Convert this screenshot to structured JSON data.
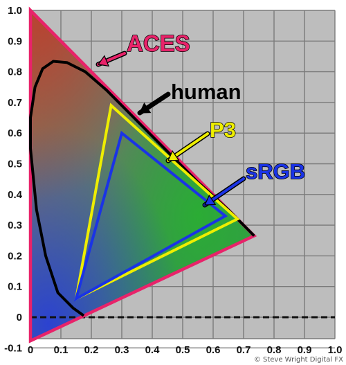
{
  "chart_data": {
    "type": "line",
    "title": "",
    "xlabel": "",
    "ylabel": "",
    "xlim": [
      0,
      1.0
    ],
    "ylim": [
      -0.07,
      1.0
    ],
    "grid": true,
    "x_ticks": [
      "0",
      "0.1",
      "0.2",
      "0.3",
      "0.4",
      "0.5",
      "0.6",
      "0.7",
      "0.8",
      "0.9",
      "1.0"
    ],
    "y_ticks": [
      "1.0",
      "0.9",
      "0.8",
      "0.7",
      "0.6",
      "0.5",
      "0.4",
      "0.3",
      "0.2",
      "0.1",
      "0",
      "-0.1"
    ],
    "series": [
      {
        "name": "ACES",
        "color": "#e8236a",
        "points": [
          [
            0.0,
            1.0
          ],
          [
            0.7347,
            0.2653
          ],
          [
            0.0001,
            -0.077
          ],
          [
            0.0,
            1.0
          ]
        ]
      },
      {
        "name": "human",
        "color": "#000000",
        "points": [
          [
            0.175,
            0.005
          ],
          [
            0.14,
            0.03
          ],
          [
            0.09,
            0.08
          ],
          [
            0.05,
            0.2
          ],
          [
            0.02,
            0.35
          ],
          [
            0.0,
            0.55
          ],
          [
            0.0,
            0.65
          ],
          [
            0.015,
            0.75
          ],
          [
            0.04,
            0.81
          ],
          [
            0.075,
            0.834
          ],
          [
            0.12,
            0.83
          ],
          [
            0.18,
            0.8
          ],
          [
            0.25,
            0.74
          ],
          [
            0.35,
            0.64
          ],
          [
            0.45,
            0.54
          ],
          [
            0.55,
            0.44
          ],
          [
            0.65,
            0.35
          ],
          [
            0.7347,
            0.2653
          ]
        ]
      },
      {
        "name": "P3",
        "color": "#eeee00",
        "points": [
          [
            0.68,
            0.32
          ],
          [
            0.265,
            0.69
          ],
          [
            0.15,
            0.06
          ],
          [
            0.68,
            0.32
          ]
        ]
      },
      {
        "name": "sRGB",
        "color": "#1a33e6",
        "points": [
          [
            0.64,
            0.33
          ],
          [
            0.3,
            0.6
          ],
          [
            0.15,
            0.06
          ],
          [
            0.64,
            0.33
          ]
        ]
      }
    ],
    "annotations": [
      {
        "text": "ACES",
        "color": "#e8236a"
      },
      {
        "text": "human",
        "color": "#000000"
      },
      {
        "text": "P3",
        "color": "#eeee00"
      },
      {
        "text": "sRGB",
        "color": "#1a33e6"
      }
    ],
    "credit": "© Steve Wright Digital FX"
  }
}
